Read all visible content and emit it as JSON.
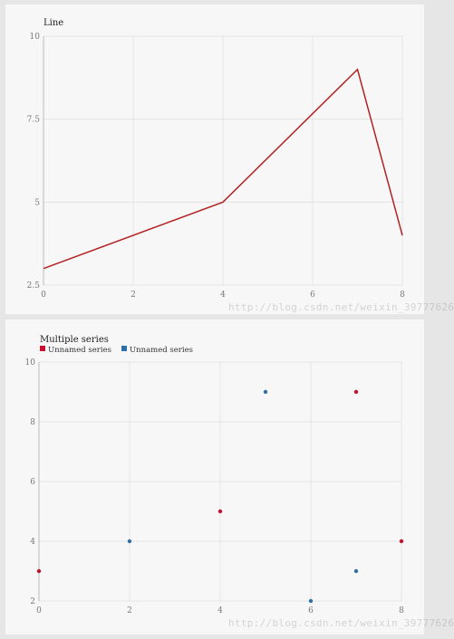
{
  "watermark": "http://blog.csdn.net/weixin_39777626",
  "charts": [
    {
      "chart_data": {
        "type": "line",
        "title": "Line",
        "xlim": [
          0,
          8
        ],
        "ylim": [
          2.5,
          10
        ],
        "xticks": [
          0,
          2,
          4,
          6,
          8
        ],
        "yticks": [
          2.5,
          5,
          7.5,
          10
        ],
        "ytick_labels": [
          "2.5",
          "5",
          "7.5",
          "10"
        ],
        "grid": true,
        "series": [
          {
            "color": "#b22222",
            "x": [
              0,
              4,
              7,
              8
            ],
            "y": [
              3,
              5,
              9,
              4
            ]
          }
        ]
      }
    },
    {
      "chart_data": {
        "type": "scatter",
        "title": "Multiple series",
        "xlim": [
          0,
          8
        ],
        "ylim": [
          2,
          10
        ],
        "xticks": [
          0,
          2,
          4,
          6,
          8
        ],
        "yticks": [
          2,
          4,
          6,
          8,
          10
        ],
        "grid": true,
        "legend": "top-left",
        "series": [
          {
            "name": "Unnamed series",
            "color": "#c8102e",
            "x": [
              0,
              4,
              7,
              8
            ],
            "y": [
              3,
              5,
              9,
              4
            ]
          },
          {
            "name": "Unnamed series",
            "color": "#2f6fa8",
            "x": [
              2,
              5,
              6,
              7
            ],
            "y": [
              4,
              9,
              2,
              3
            ]
          }
        ]
      }
    }
  ]
}
